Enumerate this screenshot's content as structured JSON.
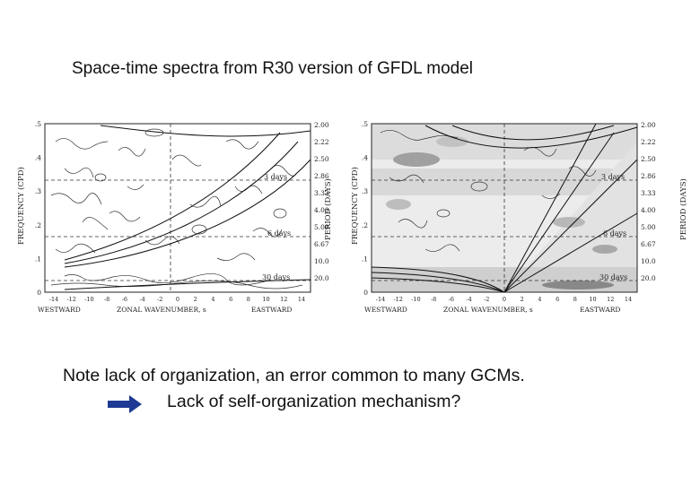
{
  "slide": {
    "title": "Space-time spectra from R30 version of GFDL model",
    "caption_line1": "Note lack of organization, an error common to many GCMs.",
    "caption_line2": "Lack of self-organization mechanism?",
    "arrow_color": "#1f3a93"
  },
  "panels": [
    {
      "id": "left",
      "y_left_label": "FREQUENCY (CPD)",
      "y_right_label": "PERIOD (DAYS)",
      "y_left_ticks": [
        ".5",
        ".4",
        ".3",
        ".2",
        ".1",
        "0"
      ],
      "y_right_ticks": [
        "2.00",
        "2.22",
        "2.50",
        "2.86",
        "3.33",
        "4.00",
        "5.00",
        "6.67",
        "10.0",
        "20.0"
      ],
      "x_ticks": [
        "-14",
        "-12",
        "-10",
        "-8",
        "-6",
        "-4",
        "-2",
        "0",
        "2",
        "4",
        "6",
        "8",
        "10",
        "12",
        "14"
      ],
      "x_labels": [
        "WESTWARD",
        "ZONAL WAVENUMBER, s",
        "EASTWARD"
      ],
      "day_labels": [
        "3 days",
        "6 days",
        "30 days"
      ]
    },
    {
      "id": "right",
      "y_left_label": "FREQUENCY (CPD)",
      "y_right_label": "PERIOD (DAYS)",
      "y_left_ticks": [
        ".5",
        ".4",
        ".3",
        ".2",
        ".1",
        "0"
      ],
      "y_right_ticks": [
        "2.00",
        "2.22",
        "2.50",
        "2.86",
        "3.33",
        "4.00",
        "5.00",
        "6.67",
        "10.0",
        "20.0"
      ],
      "x_ticks": [
        "-14",
        "-12",
        "-10",
        "-8",
        "-6",
        "-4",
        "-2",
        "0",
        "2",
        "4",
        "6",
        "8",
        "10",
        "12",
        "14"
      ],
      "x_labels": [
        "WESTWARD",
        "ZONAL WAVENUMBER, s",
        "EASTWARD"
      ],
      "day_labels": [
        "3 days",
        "6 days",
        "30 days"
      ]
    }
  ]
}
